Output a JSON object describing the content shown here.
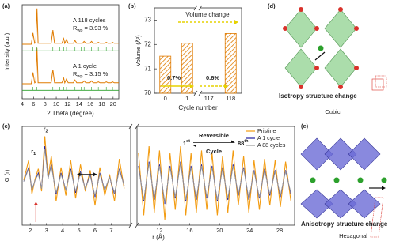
{
  "chart_data": [
    {
      "type": "line",
      "label": "(a)",
      "xlabel": "2 Theta (degree)",
      "ylabel": "Intensity (a.u.)",
      "xlim": [
        4,
        21
      ],
      "xticks": [
        4,
        6,
        8,
        10,
        12,
        14,
        16,
        18,
        20
      ],
      "ylim": [
        0,
        10
      ],
      "series": [
        {
          "color": "#e07b00",
          "x": [
            4,
            5.6,
            5.9,
            6.2,
            6.4,
            6.6,
            6.8,
            9.1,
            9.4,
            9.7,
            11.0,
            11.3,
            11.5,
            11.8,
            12.1,
            13.0,
            13.3,
            13.6,
            14.6,
            14.9,
            15.2,
            15.9,
            16.2,
            16.5,
            17.1,
            17.4,
            17.7,
            18.5,
            18.8,
            19.1,
            19.6,
            19.9,
            20.2,
            21
          ],
          "values": [
            5.8,
            5.8,
            7.0,
            5.9,
            6.0,
            9.6,
            5.9,
            5.9,
            7.3,
            5.9,
            5.9,
            6.4,
            5.9,
            6.3,
            5.9,
            5.9,
            6.2,
            5.9,
            5.9,
            6.1,
            5.9,
            5.9,
            6.1,
            5.9,
            5.9,
            6.0,
            5.9,
            5.9,
            6.0,
            5.9,
            5.9,
            6.0,
            5.9,
            5.9
          ]
        },
        {
          "color": "#e07b00",
          "x": [
            4,
            5.6,
            5.9,
            6.2,
            6.4,
            6.6,
            6.8,
            9.1,
            9.4,
            9.7,
            11.0,
            11.3,
            11.5,
            11.8,
            12.1,
            13.0,
            13.3,
            13.6,
            14.6,
            14.9,
            15.2,
            15.9,
            16.2,
            16.5,
            17.1,
            17.4,
            17.7,
            18.5,
            18.8,
            19.1,
            19.6,
            19.9,
            20.2,
            21
          ],
          "values": [
            1.6,
            1.6,
            2.8,
            1.7,
            1.8,
            5.4,
            1.7,
            1.7,
            3.1,
            1.7,
            1.7,
            2.2,
            1.7,
            2.1,
            1.7,
            1.7,
            2.0,
            1.7,
            1.7,
            1.9,
            1.7,
            1.7,
            1.9,
            1.7,
            1.7,
            1.8,
            1.7,
            1.7,
            1.8,
            1.7,
            1.7,
            1.8,
            1.7,
            1.7
          ]
        },
        {
          "color": "#2ca02c",
          "x": [
            4,
            21
          ],
          "values": [
            5.1,
            5.1
          ]
        },
        {
          "color": "#2ca02c",
          "x": [
            4,
            21
          ],
          "values": [
            0.9,
            0.9
          ]
        }
      ],
      "bragg": [
        5.9,
        6.6,
        9.4,
        10.6,
        11.3,
        11.8,
        13.3,
        14.4,
        14.9,
        16.2,
        17.4,
        18.8,
        19.9
      ],
      "annotations": [
        {
          "text": "A 118 cycles"
        },
        {
          "text": "R",
          "sub": "wp",
          "rest": " = 3.93 %"
        },
        {
          "text": "A 1 cycle"
        },
        {
          "text": "R",
          "sub": "wp",
          "rest": " = 3.15 %"
        }
      ]
    },
    {
      "type": "bar",
      "label": "(b)",
      "xlabel": "Cycle number",
      "ylabel": "Volume (Å³)",
      "categories": [
        "0",
        "1",
        "117",
        "118"
      ],
      "values": [
        71.52,
        72.05,
        null,
        72.45
      ],
      "color": "#e07b00",
      "ylim": [
        70,
        73.5
      ],
      "yticks": [
        70,
        71,
        72,
        73
      ],
      "axis_break_after": 1,
      "annotations": [
        "Volume change",
        "0.7%",
        "0.6%"
      ]
    },
    {
      "type": "line",
      "label": "(c)",
      "xlabel": "r (Å)",
      "ylabel": "G (r)",
      "xlim": [
        1.5,
        30
      ],
      "xbreak": [
        8.2,
        9
      ],
      "xticks": [
        2,
        3,
        4,
        5,
        6,
        7,
        12,
        16,
        20,
        24,
        28
      ],
      "ylim": [
        -3,
        4
      ],
      "x": [
        1.6,
        1.9,
        2.1,
        2.3,
        2.5,
        2.7,
        2.9,
        3.1,
        3.3,
        3.6,
        3.9,
        4.2,
        4.5,
        4.8,
        5.1,
        5.4,
        5.7,
        6.0,
        6.3,
        6.6,
        6.9,
        7.2,
        7.5,
        7.8,
        8.5,
        9.2,
        9.9,
        10.6,
        11.3,
        12.0,
        12.7,
        13.4,
        14.1,
        14.8,
        15.5,
        16.2,
        16.9,
        17.6,
        18.3,
        19.0,
        19.7,
        20.4,
        21.1,
        21.8,
        22.5,
        23.2,
        23.9,
        24.6,
        25.3,
        26.0,
        26.7,
        27.4,
        28.1,
        28.8,
        29.5
      ],
      "series": [
        {
          "name": "Pristine",
          "color": "#f39c12",
          "values": [
            0.2,
            1.6,
            -0.8,
            0.3,
            1.0,
            -0.6,
            3.3,
            0.4,
            1.9,
            -1.3,
            1.1,
            -0.9,
            1.6,
            -1.1,
            1.3,
            -0.6,
            0.9,
            -1.6,
            1.1,
            -0.9,
            0.6,
            -1.3,
            1.7,
            -0.4,
            null,
            2.1,
            -2.3,
            2.6,
            -2.1,
            2.3,
            -2.6,
            2.1,
            -1.9,
            2.6,
            -2.3,
            2.1,
            -2.1,
            2.3,
            -1.9,
            2.1,
            -2.3,
            1.9,
            -2.1,
            2.3,
            -1.6,
            1.9,
            -2.1,
            1.6,
            -1.9,
            1.7,
            -1.6,
            1.6,
            -1.7,
            1.5,
            -1.3
          ]
        },
        {
          "name": "A 1 cycle",
          "color": "#1f1fa0",
          "values": [
            0.1,
            1.1,
            -0.5,
            0.2,
            0.7,
            -0.4,
            2.6,
            0.3,
            1.3,
            -0.8,
            0.7,
            -0.5,
            1.0,
            -0.7,
            0.8,
            -0.4,
            0.6,
            -1.0,
            0.7,
            -0.5,
            0.4,
            -0.8,
            1.0,
            -0.2,
            null,
            1.2,
            -1.3,
            1.5,
            -1.2,
            1.3,
            -1.5,
            1.2,
            -1.1,
            1.5,
            -1.3,
            1.2,
            -1.2,
            1.3,
            -1.1,
            1.2,
            -1.3,
            1.1,
            -1.2,
            1.3,
            -0.9,
            1.1,
            -1.2,
            0.9,
            -1.1,
            1.0,
            -0.9,
            0.9,
            -1.0,
            0.9,
            -0.8
          ]
        },
        {
          "name": "A 88 cycles",
          "color": "#999999",
          "values": [
            0.1,
            1.0,
            -0.5,
            0.2,
            0.6,
            -0.4,
            2.4,
            0.3,
            1.2,
            -0.7,
            0.6,
            -0.5,
            0.9,
            -0.6,
            0.7,
            -0.4,
            0.5,
            -0.9,
            0.6,
            -0.5,
            0.4,
            -0.7,
            0.9,
            -0.2,
            null,
            1.1,
            -1.2,
            1.4,
            -1.1,
            1.2,
            -1.4,
            1.1,
            -1.0,
            1.4,
            -1.2,
            1.1,
            -1.1,
            1.2,
            -1.0,
            1.1,
            -1.2,
            1.0,
            -1.1,
            1.2,
            -0.8,
            1.0,
            -1.1,
            0.8,
            -1.0,
            0.9,
            -0.8,
            0.8,
            -0.9,
            0.8,
            -0.7
          ]
        }
      ],
      "legend": "upper right",
      "peaks": [
        {
          "text": "r",
          "sub": "1"
        },
        {
          "text": "r",
          "sub": "2"
        }
      ],
      "cycle_note": {
        "top": "Reversible",
        "bottom": "Cycle",
        "start": {
          "text": "1",
          "sup": "st"
        },
        "end": {
          "text": "88",
          "sup": "th"
        }
      }
    }
  ],
  "diagrams": {
    "d": {
      "label": "(d)",
      "caption": "Isotropy structure change",
      "system": "Cubic"
    },
    "e": {
      "label": "(e)",
      "caption": "Anisotropy structure change",
      "system": "Hexagonal"
    }
  }
}
